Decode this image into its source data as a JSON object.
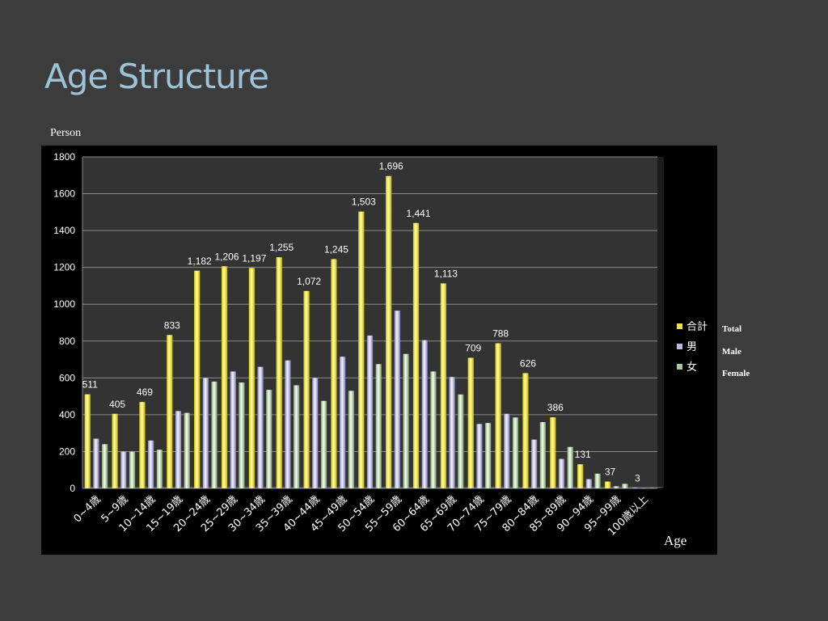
{
  "slide": {
    "title": "Age Structure",
    "y_unit_label": "Person",
    "x_unit_label": "Age",
    "legend_side_labels": [
      "Total",
      "Male",
      "Female"
    ]
  },
  "chart_data": {
    "type": "bar",
    "categories": [
      "0~4歳",
      "5~9歳",
      "10~14歳",
      "15~19歳",
      "20~24歳",
      "25~29歳",
      "30~34歳",
      "35~39歳",
      "40~44歳",
      "45~49歳",
      "50~54歳",
      "55~59歳",
      "60~64歳",
      "65~69歳",
      "70~74歳",
      "75~79歳",
      "80~84歳",
      "85~89歳",
      "90~94歳",
      "95~99歳",
      "100歳以上"
    ],
    "series": [
      {
        "name": "合計",
        "color": "#f0e040",
        "values": [
          511,
          405,
          469,
          833,
          1182,
          1206,
          1197,
          1255,
          1072,
          1245,
          1503,
          1696,
          1441,
          1113,
          709,
          788,
          626,
          386,
          131,
          37,
          3
        ]
      },
      {
        "name": "男",
        "color": "#b8b8e0",
        "values": [
          270,
          200,
          260,
          420,
          600,
          635,
          660,
          695,
          600,
          715,
          830,
          965,
          805,
          605,
          350,
          405,
          265,
          160,
          50,
          12,
          1
        ]
      },
      {
        "name": "女",
        "color": "#a8c898",
        "values": [
          240,
          200,
          210,
          410,
          580,
          575,
          535,
          560,
          475,
          530,
          675,
          730,
          635,
          510,
          355,
          385,
          360,
          225,
          80,
          25,
          2
        ]
      }
    ],
    "data_labels": [
      "511",
      "405",
      "469",
      "833",
      "1,182",
      "1,206",
      "1,197",
      "1,255",
      "1,072",
      "1,245",
      "1,503",
      "1,696",
      "1,441",
      "1,113",
      "709",
      "788",
      "626",
      "386",
      "131",
      "37",
      "3"
    ],
    "ylim": [
      0,
      1800
    ],
    "yticks": [
      0,
      200,
      400,
      600,
      800,
      1000,
      1200,
      1400,
      1600,
      1800
    ],
    "grid": true,
    "legend_position": "right"
  }
}
